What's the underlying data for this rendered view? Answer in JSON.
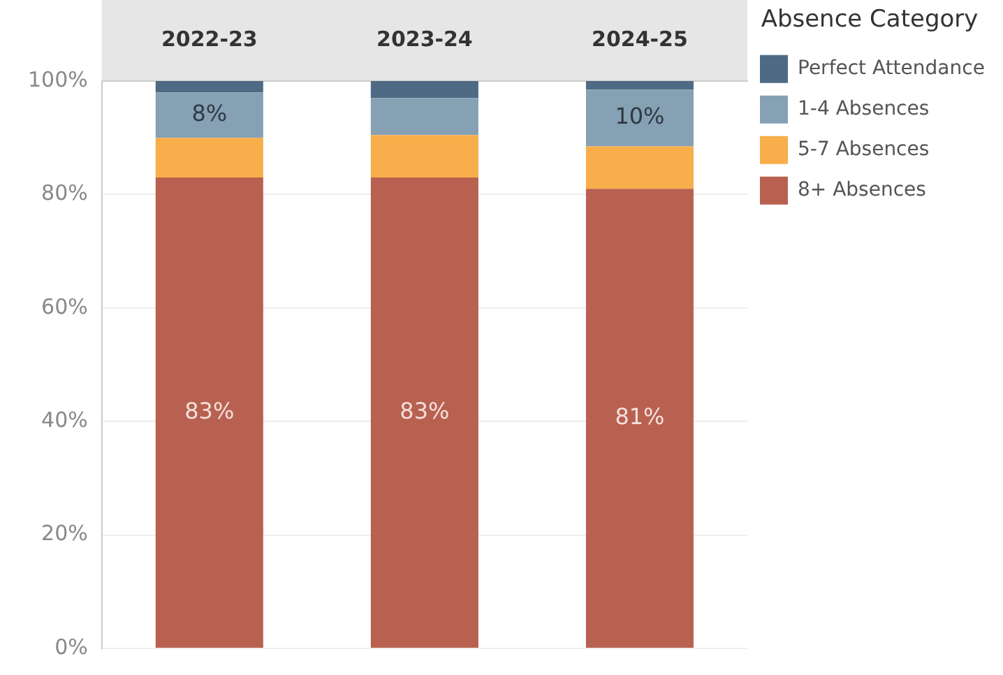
{
  "chart_data": {
    "type": "bar",
    "stacked": true,
    "legend_title": "Absence Category",
    "categories": [
      "2022-23",
      "2023-24",
      "2024-25"
    ],
    "series": [
      {
        "name": "8+ Absences",
        "color": "#b86150",
        "values": [
          83,
          83,
          81
        ],
        "value_labels": [
          "83%",
          "83%",
          "81%"
        ]
      },
      {
        "name": "5-7 Absences",
        "color": "#f8ae4a",
        "values": [
          7,
          7.5,
          7.5
        ],
        "value_labels": [
          null,
          null,
          null
        ]
      },
      {
        "name": "1-4 Absences",
        "color": "#86a0b4",
        "values": [
          8,
          6.5,
          10
        ],
        "value_labels": [
          "8%",
          null,
          "10%"
        ]
      },
      {
        "name": "Perfect Attendance",
        "color": "#4e6a84",
        "values": [
          2,
          3,
          1.5
        ],
        "value_labels": [
          null,
          null,
          null
        ]
      }
    ],
    "ylim": [
      0,
      100
    ],
    "yticks": [
      {
        "value": 0,
        "label": "0%"
      },
      {
        "value": 20,
        "label": "20%"
      },
      {
        "value": 40,
        "label": "40%"
      },
      {
        "value": 60,
        "label": "60%"
      },
      {
        "value": 80,
        "label": "80%"
      },
      {
        "value": 100,
        "label": "100%"
      }
    ],
    "grid": "y",
    "legend": "top right"
  }
}
